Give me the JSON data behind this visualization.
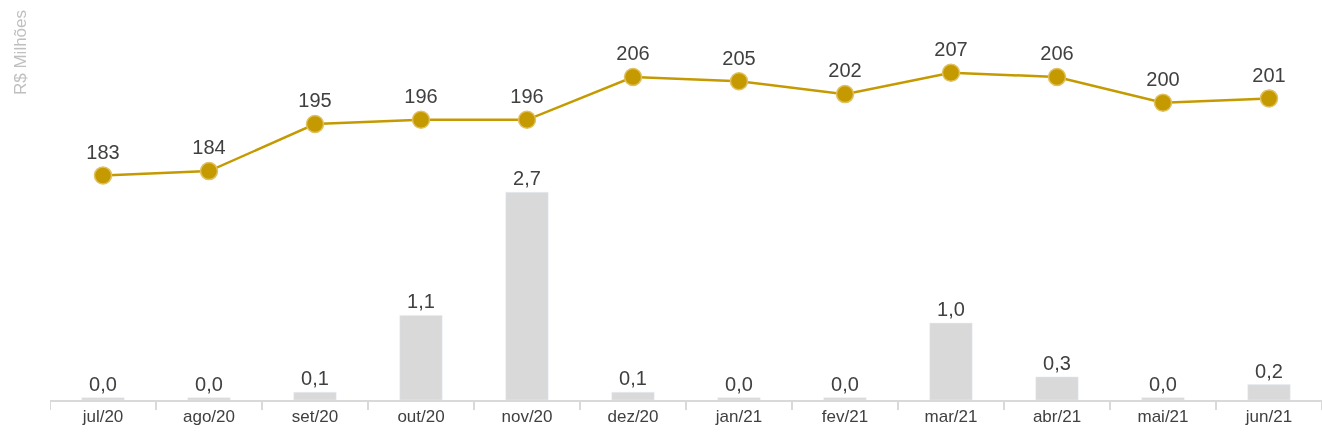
{
  "chart_data": {
    "type": "bar",
    "ylabel": "R$ Milhões",
    "categories": [
      "jul/20",
      "ago/20",
      "set/20",
      "out/20",
      "nov/20",
      "dez/20",
      "jan/21",
      "fev/21",
      "mar/21",
      "abr/21",
      "mai/21",
      "jun/21"
    ],
    "series": [
      {
        "color": "#d9d9d9",
        "values": [
          0.03,
          0.03,
          0.1,
          1.1,
          2.7,
          0.1,
          0.03,
          0.03,
          1.0,
          0.3,
          0.03,
          0.2
        ],
        "value_labels": [
          "0,0",
          "0,0",
          "0,1",
          "1,1",
          "2,7",
          "0,1",
          "0,0",
          "0,0",
          "1,0",
          "0,3",
          "0,0",
          "0,2"
        ]
      },
      {
        "type": "line",
        "axis": "y2",
        "color": "#c49a00",
        "marker": "circle",
        "line_style": "solid",
        "values": [
          183,
          184,
          195,
          196,
          196,
          206,
          205,
          202,
          207,
          206,
          200,
          201
        ],
        "value_labels": [
          "183",
          "184",
          "195",
          "196",
          "196",
          "206",
          "205",
          "202",
          "207",
          "206",
          "200",
          "201"
        ]
      }
    ],
    "ylim": [
      0,
      5.2
    ],
    "y2lim": [
      130.5,
      224
    ],
    "tick_labels": "x",
    "legend": false
  }
}
